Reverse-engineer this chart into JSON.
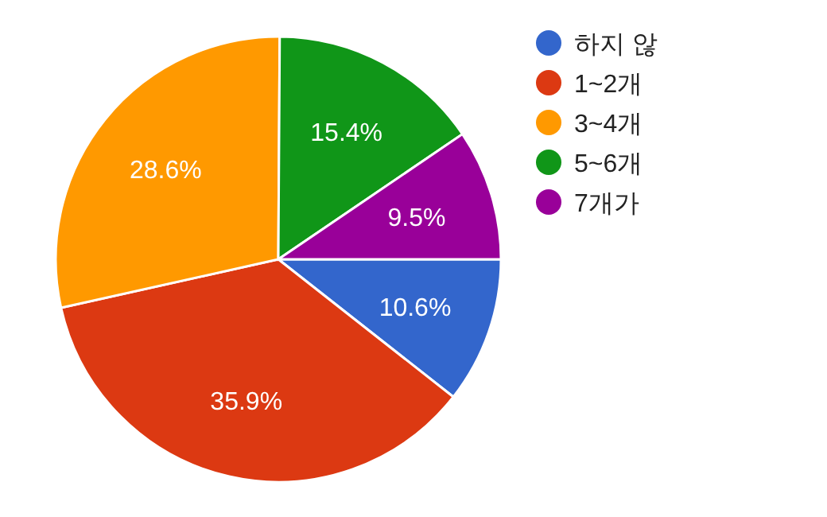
{
  "chart_data": {
    "type": "pie",
    "categories": [
      "하지 않",
      "1~2개",
      "3~4개",
      "5~6개",
      "7개가"
    ],
    "values": [
      10.6,
      35.9,
      28.6,
      15.4,
      9.5
    ],
    "colors": [
      "#3366cc",
      "#dc3912",
      "#ff9900",
      "#109618",
      "#990099"
    ],
    "value_labels": [
      "10.6%",
      "35.9%",
      "28.6%",
      "15.4%",
      "9.5%"
    ],
    "legend": "right"
  }
}
